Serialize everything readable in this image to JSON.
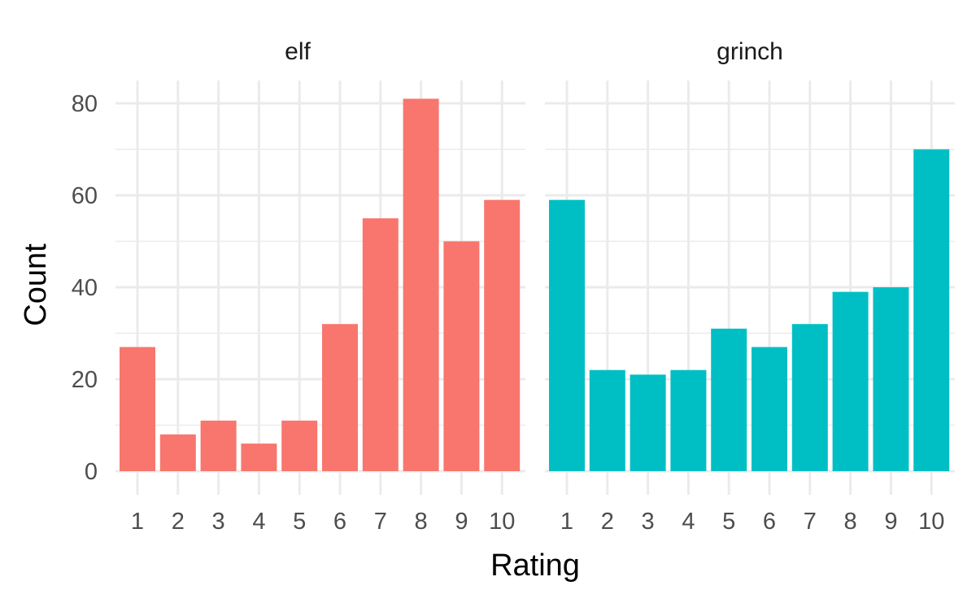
{
  "chart_data": {
    "type": "bar",
    "facet_by": "panel",
    "categories": [
      "1",
      "2",
      "3",
      "4",
      "5",
      "6",
      "7",
      "8",
      "9",
      "10"
    ],
    "panels": [
      {
        "name": "elf",
        "color": "#F8766D",
        "values": [
          27,
          8,
          11,
          6,
          11,
          32,
          55,
          81,
          50,
          59
        ]
      },
      {
        "name": "grinch",
        "color": "#00BFC4",
        "values": [
          59,
          22,
          21,
          22,
          31,
          27,
          32,
          39,
          40,
          70
        ]
      }
    ],
    "xlabel": "Rating",
    "ylabel": "Count",
    "ylim": [
      0,
      85
    ],
    "yticks": [
      0,
      20,
      40,
      60,
      80
    ],
    "grid": true,
    "legend": "none"
  }
}
